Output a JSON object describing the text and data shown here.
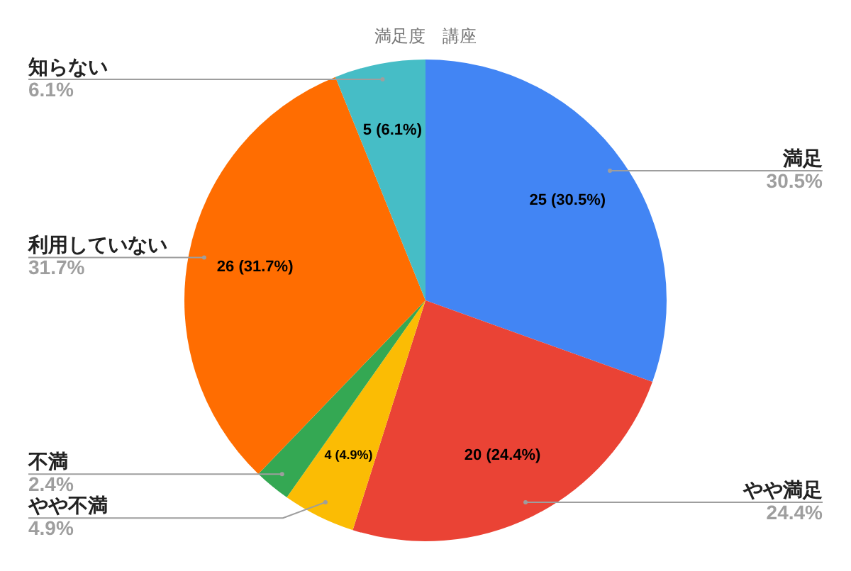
{
  "chart_data": {
    "type": "pie",
    "title": "満足度　講座",
    "categories": [
      "満足",
      "やや満足",
      "やや不満",
      "不満",
      "利用していない",
      "知らない"
    ],
    "values": [
      25,
      20,
      4,
      2,
      26,
      5
    ],
    "colors": [
      "#4285f4",
      "#ea4335",
      "#fbbc04",
      "#34a853",
      "#ff6d01",
      "#46bdc6"
    ],
    "value_labels": [
      "25 (30.5%)",
      "20 (24.4%)",
      "4 (4.9%)",
      null,
      "26 (31.7%)",
      "5 (6.1%)"
    ],
    "annotations": [
      "30.5%",
      "24.4%",
      "4.9%",
      "2.4%",
      "31.7%",
      "6.1%"
    ],
    "legend": false
  }
}
